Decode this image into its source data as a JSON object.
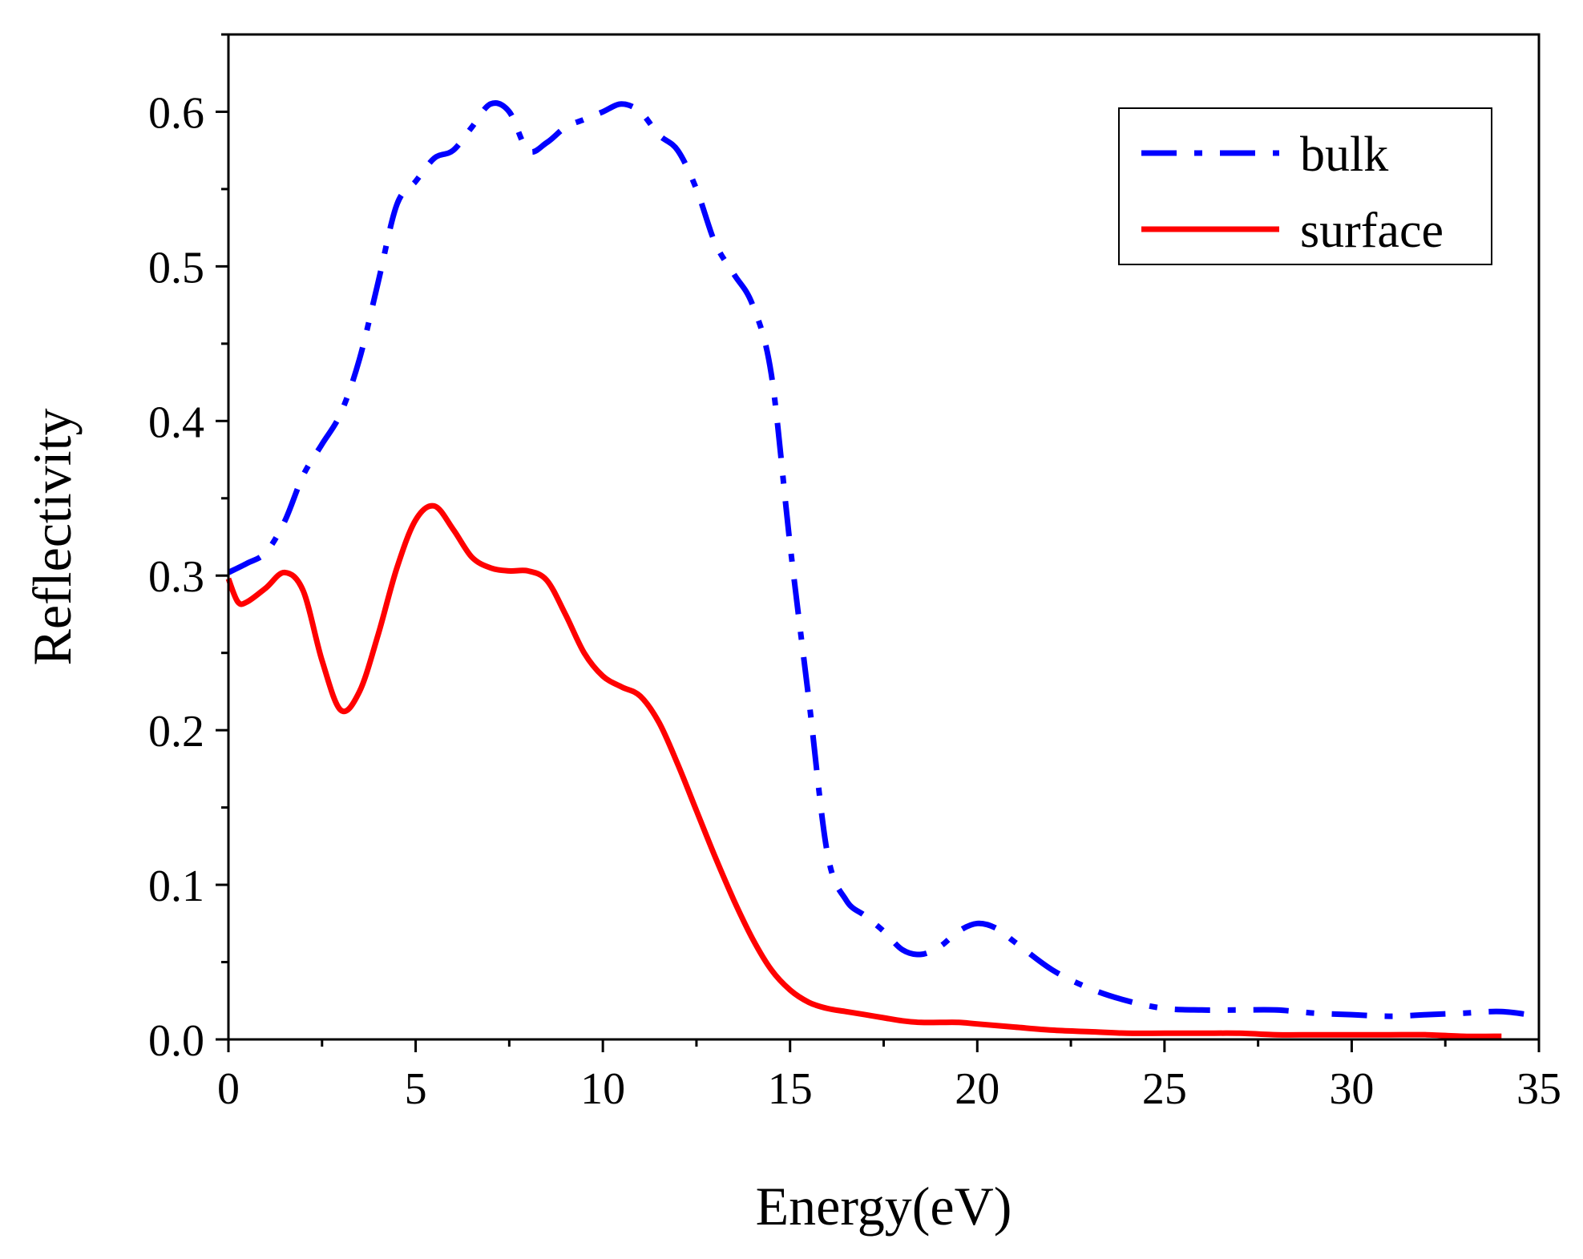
{
  "chart_data": {
    "type": "line",
    "title": "",
    "xlabel": "Energy(eV)",
    "ylabel": "Reflectivity",
    "xlim": [
      0,
      35
    ],
    "ylim": [
      0,
      0.65
    ],
    "xticks": [
      0,
      5,
      10,
      15,
      20,
      25,
      30,
      35
    ],
    "xtick_labels": [
      "0",
      "5",
      "10",
      "15",
      "20",
      "25",
      "30",
      "35"
    ],
    "yticks": [
      0.0,
      0.1,
      0.2,
      0.3,
      0.4,
      0.5,
      0.6
    ],
    "ytick_labels": [
      "0.0",
      "0.1",
      "0.2",
      "0.3",
      "0.4",
      "0.5",
      "0.6"
    ],
    "grid": false,
    "legend_position": "top-right",
    "series": [
      {
        "name": "bulk",
        "color": "#0000ff",
        "style": "dash-dot",
        "x": [
          0,
          0.5,
          1.0,
          1.5,
          2.0,
          2.5,
          3.0,
          3.5,
          4.0,
          4.5,
          5.0,
          5.5,
          6.0,
          6.5,
          7.0,
          7.5,
          8.0,
          8.5,
          9.0,
          9.5,
          10.0,
          10.5,
          11.0,
          11.5,
          12.0,
          12.5,
          13.0,
          13.5,
          14.0,
          14.5,
          15.0,
          15.5,
          16.0,
          16.5,
          17.0,
          17.5,
          18.0,
          18.5,
          19.0,
          19.5,
          20.0,
          20.5,
          21.0,
          22.0,
          23.0,
          24.0,
          25.0,
          26.0,
          27.0,
          28.0,
          29.0,
          30.0,
          31.0,
          32.0,
          33.0,
          34.0,
          35.0
        ],
        "values": [
          0.302,
          0.308,
          0.315,
          0.335,
          0.365,
          0.385,
          0.405,
          0.44,
          0.49,
          0.54,
          0.555,
          0.57,
          0.575,
          0.59,
          0.605,
          0.6,
          0.575,
          0.58,
          0.59,
          0.595,
          0.6,
          0.605,
          0.6,
          0.585,
          0.575,
          0.55,
          0.515,
          0.495,
          0.475,
          0.43,
          0.32,
          0.22,
          0.12,
          0.09,
          0.08,
          0.07,
          0.058,
          0.055,
          0.06,
          0.07,
          0.075,
          0.072,
          0.063,
          0.045,
          0.033,
          0.025,
          0.02,
          0.019,
          0.019,
          0.019,
          0.017,
          0.016,
          0.015,
          0.016,
          0.017,
          0.018,
          0.015
        ]
      },
      {
        "name": "surface",
        "color": "#ff0000",
        "style": "solid",
        "x": [
          0,
          0.25,
          0.5,
          1.0,
          1.5,
          2.0,
          2.5,
          3.0,
          3.5,
          4.0,
          4.5,
          5.0,
          5.5,
          6.0,
          6.5,
          7.0,
          7.5,
          8.0,
          8.5,
          9.0,
          9.5,
          10.0,
          10.5,
          11.0,
          11.5,
          12.0,
          12.5,
          13.0,
          13.5,
          14.0,
          14.5,
          15.0,
          15.5,
          16.0,
          16.5,
          17.0,
          17.5,
          18.0,
          18.5,
          19.0,
          19.5,
          20.0,
          21.0,
          22.0,
          23.0,
          24.0,
          25.0,
          26.0,
          27.0,
          28.0,
          29.0,
          30.0,
          31.0,
          32.0,
          33.0,
          34.0
        ],
        "values": [
          0.298,
          0.283,
          0.283,
          0.292,
          0.302,
          0.29,
          0.245,
          0.213,
          0.225,
          0.262,
          0.305,
          0.336,
          0.345,
          0.33,
          0.312,
          0.305,
          0.303,
          0.303,
          0.297,
          0.275,
          0.25,
          0.235,
          0.228,
          0.222,
          0.205,
          0.178,
          0.148,
          0.118,
          0.09,
          0.065,
          0.045,
          0.032,
          0.024,
          0.02,
          0.018,
          0.016,
          0.014,
          0.012,
          0.011,
          0.011,
          0.011,
          0.01,
          0.008,
          0.006,
          0.005,
          0.004,
          0.004,
          0.004,
          0.004,
          0.003,
          0.003,
          0.003,
          0.003,
          0.003,
          0.002,
          0.002
        ]
      }
    ]
  }
}
